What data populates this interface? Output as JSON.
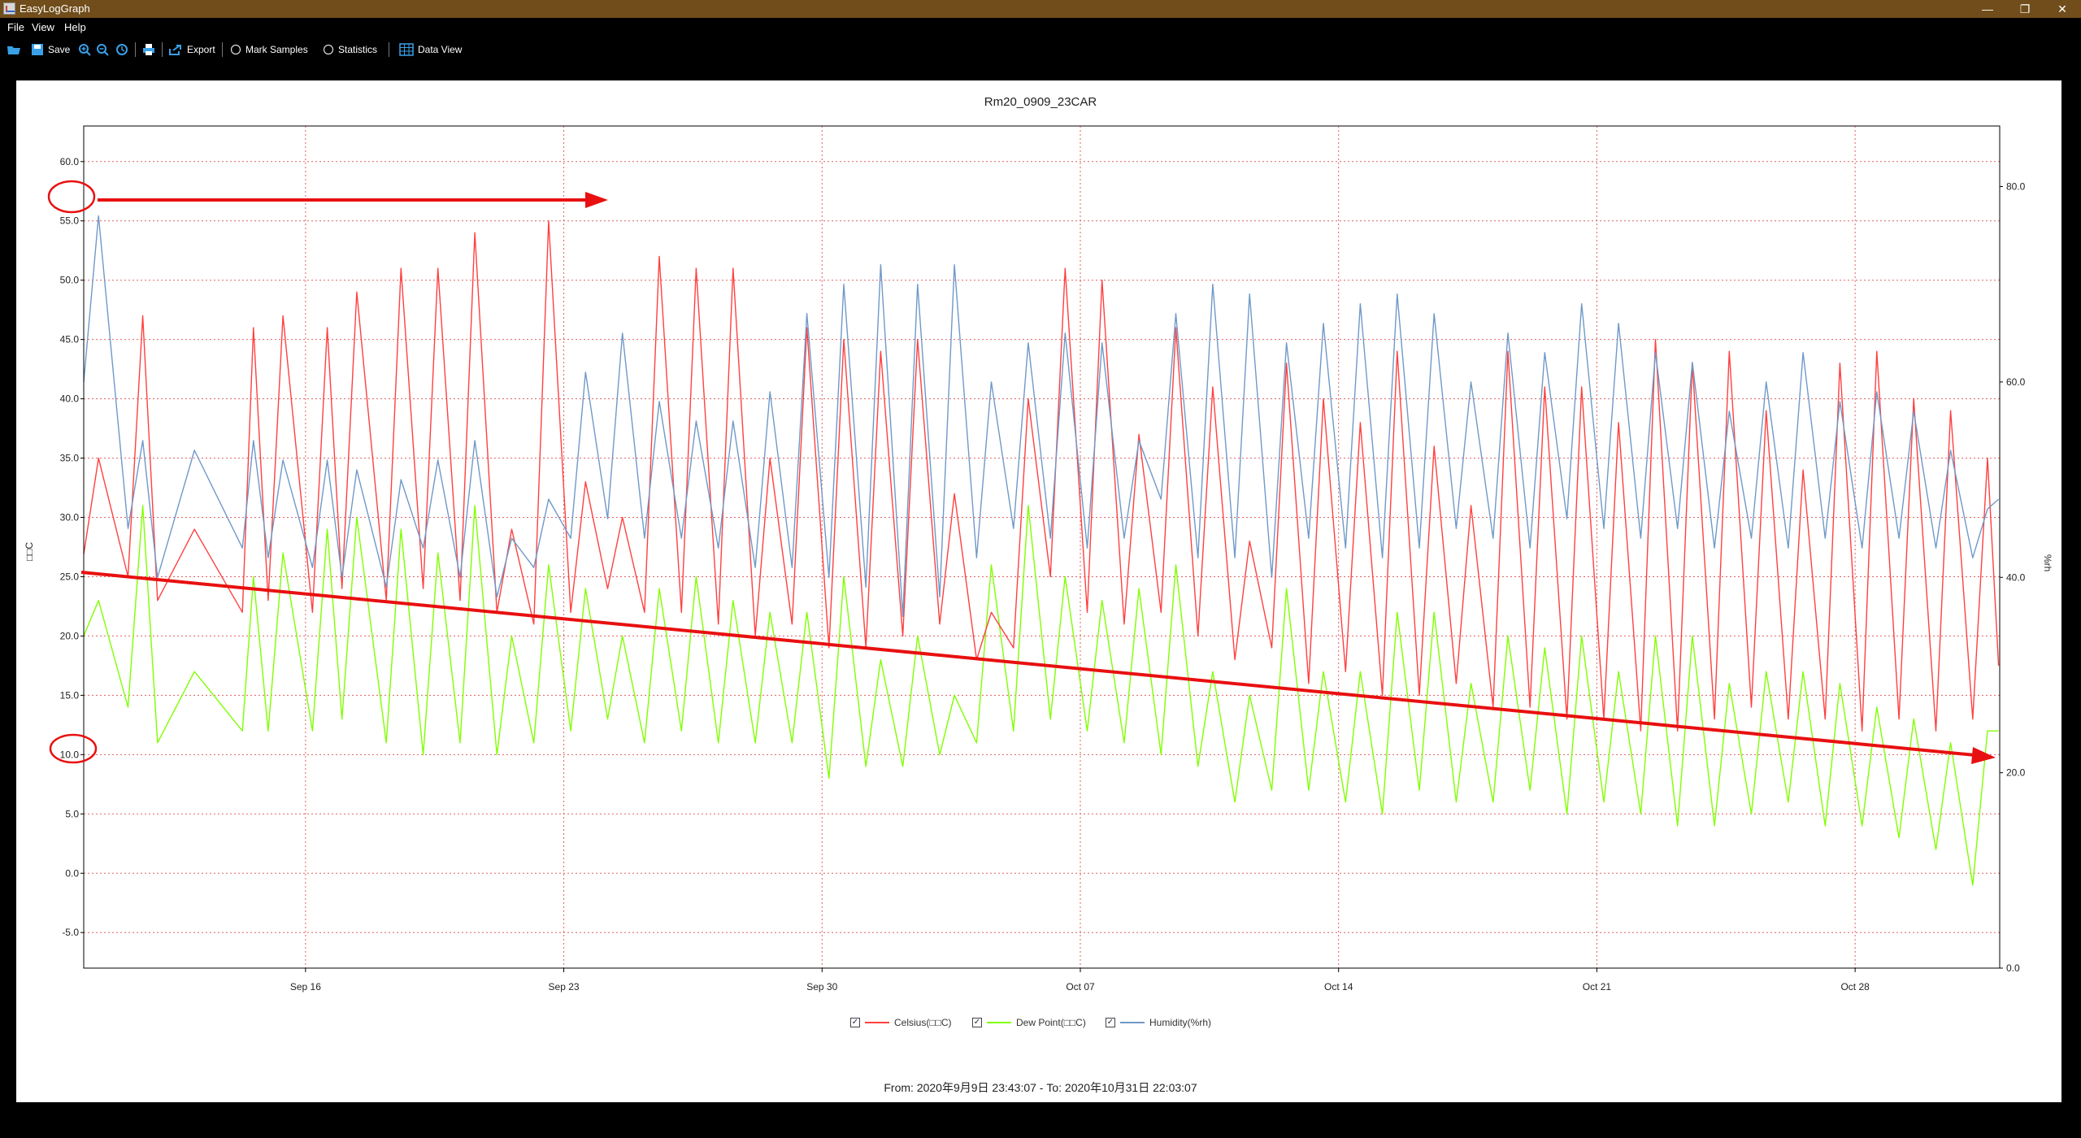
{
  "window": {
    "title": "EasyLogGraph",
    "minimize": "—",
    "restore": "❐",
    "close": "✕"
  },
  "menu": {
    "items": [
      "File",
      "View",
      "Help"
    ]
  },
  "toolbar": {
    "open_icon": "open-icon",
    "save_label": "Save",
    "export_label": "Export",
    "mark_samples_label": "Mark Samples",
    "statistics_label": "Statistics",
    "data_view_label": "Data View"
  },
  "chart_data": {
    "type": "line",
    "title": "Rm20_0909_23CAR",
    "ylabel": "□□C",
    "y2label": "%rh",
    "ylim": [
      -8,
      63
    ],
    "y2lim": [
      0,
      86.2
    ],
    "yticks": [
      "60.0",
      "55.0",
      "50.0",
      "45.0",
      "40.0",
      "35.0",
      "30.0",
      "25.0",
      "20.0",
      "15.0",
      "10.0",
      "5.0",
      "0.0",
      "-5.0"
    ],
    "y2ticks": [
      "80.0",
      "60.0",
      "40.0",
      "20.0",
      "0.0"
    ],
    "x_start": "2020-09-09 23:43:07",
    "x_end": "2020-10-31 22:03:07",
    "xticks": [
      {
        "label": "Sep 16",
        "date": "2020-09-16"
      },
      {
        "label": "Sep 23",
        "date": "2020-09-23"
      },
      {
        "label": "Sep 30",
        "date": "2020-09-30"
      },
      {
        "label": "Oct 07",
        "date": "2020-10-07"
      },
      {
        "label": "Oct 14",
        "date": "2020-10-14"
      },
      {
        "label": "Oct 21",
        "date": "2020-10-21"
      },
      {
        "label": "Oct 28",
        "date": "2020-10-28"
      }
    ],
    "grid": true,
    "legend_position": "bottom",
    "series": [
      {
        "name": "Celsius(□□C)",
        "color": "#ff4040",
        "axis": "left",
        "x_day_of_range": [
          0,
          0.4,
          1.2,
          1.6,
          2,
          3,
          4.3,
          4.6,
          5,
          5.4,
          6.2,
          6.6,
          7,
          7.4,
          8.2,
          8.6,
          9.2,
          9.6,
          10.2,
          10.6,
          11.2,
          11.6,
          12.2,
          12.6,
          13.2,
          13.6,
          14.2,
          14.6,
          15.2,
          15.6,
          16.2,
          16.6,
          17.2,
          17.6,
          18.2,
          18.6,
          19.2,
          19.6,
          20.2,
          20.6,
          21.2,
          21.6,
          22.2,
          22.6,
          23.2,
          23.6,
          24.2,
          24.6,
          25.2,
          25.6,
          26.2,
          26.6,
          27.2,
          27.6,
          28.2,
          28.6,
          29.2,
          29.6,
          30.2,
          30.6,
          31.2,
          31.6,
          32.2,
          32.6,
          33.2,
          33.6,
          34.2,
          34.6,
          35.2,
          35.6,
          36.2,
          36.6,
          37.2,
          37.6,
          38.2,
          38.6,
          39.2,
          39.6,
          40.2,
          40.6,
          41.2,
          41.6,
          42.2,
          42.6,
          43.2,
          43.6,
          44.2,
          44.6,
          45.2,
          45.6,
          46.2,
          46.6,
          47.2,
          47.6,
          48.2,
          48.6,
          49.2,
          49.6,
          50.2,
          50.6,
          51.2,
          51.6,
          51.9
        ],
        "values": [
          26.9,
          35,
          25,
          47,
          23,
          29,
          22,
          46,
          23,
          47,
          22,
          46,
          24,
          49,
          23,
          51,
          24,
          51,
          23,
          54,
          22,
          29,
          21,
          55,
          22,
          33,
          24,
          30,
          22,
          52,
          22,
          51,
          21,
          51,
          20,
          35,
          21,
          46,
          19,
          45,
          19,
          44,
          20,
          45,
          21,
          32,
          18,
          22,
          19,
          40,
          25,
          51,
          22,
          50,
          21,
          37,
          22,
          46,
          20,
          41,
          18,
          28,
          19,
          43,
          16,
          40,
          17,
          38,
          15,
          44,
          15,
          36,
          16,
          31,
          14,
          44,
          14,
          41,
          13,
          41,
          13,
          38,
          12,
          45,
          12,
          43,
          13,
          44,
          14,
          39,
          13,
          34,
          13,
          43,
          12,
          44,
          13,
          40,
          12,
          39,
          13,
          35,
          17.5
        ]
      },
      {
        "name": "Dew Point(□□C)",
        "color": "#80ff00",
        "axis": "left",
        "x_day_of_range": [
          0,
          0.4,
          1.2,
          1.6,
          2,
          3,
          4.3,
          4.6,
          5,
          5.4,
          6.2,
          6.6,
          7,
          7.4,
          8.2,
          8.6,
          9.2,
          9.6,
          10.2,
          10.6,
          11.2,
          11.6,
          12.2,
          12.6,
          13.2,
          13.6,
          14.2,
          14.6,
          15.2,
          15.6,
          16.2,
          16.6,
          17.2,
          17.6,
          18.2,
          18.6,
          19.2,
          19.6,
          20.2,
          20.6,
          21.2,
          21.6,
          22.2,
          22.6,
          23.2,
          23.6,
          24.2,
          24.6,
          25.2,
          25.6,
          26.2,
          26.6,
          27.2,
          27.6,
          28.2,
          28.6,
          29.2,
          29.6,
          30.2,
          30.6,
          31.2,
          31.6,
          32.2,
          32.6,
          33.2,
          33.6,
          34.2,
          34.6,
          35.2,
          35.6,
          36.2,
          36.6,
          37.2,
          37.6,
          38.2,
          38.6,
          39.2,
          39.6,
          40.2,
          40.6,
          41.2,
          41.6,
          42.2,
          42.6,
          43.2,
          43.6,
          44.2,
          44.6,
          45.2,
          45.6,
          46.2,
          46.6,
          47.2,
          47.6,
          48.2,
          48.6,
          49.2,
          49.6,
          50.2,
          50.6,
          51.2,
          51.6,
          51.9
        ],
        "values": [
          20,
          23,
          14,
          31,
          11,
          17,
          12,
          25,
          12,
          27,
          12,
          29,
          13,
          30,
          11,
          29,
          10,
          27,
          11,
          31,
          10,
          20,
          11,
          26,
          12,
          24,
          13,
          20,
          11,
          24,
          12,
          25,
          11,
          23,
          11,
          22,
          11,
          22,
          8,
          25,
          9,
          18,
          9,
          20,
          10,
          15,
          11,
          26,
          12,
          31,
          13,
          25,
          12,
          23,
          11,
          24,
          10,
          26,
          9,
          17,
          6,
          15,
          7,
          24,
          7,
          17,
          6,
          17,
          5,
          22,
          7,
          22,
          6,
          16,
          6,
          20,
          7,
          19,
          5,
          20,
          6,
          17,
          5,
          20,
          4,
          20,
          4,
          16,
          5,
          17,
          6,
          17,
          4,
          16,
          4,
          14,
          3,
          13,
          2,
          11,
          -1,
          12,
          12
        ]
      },
      {
        "name": "Humidity(%rh)",
        "color": "#6f99c8",
        "axis": "right",
        "x_day_of_range": [
          0,
          0.4,
          1.2,
          1.6,
          2,
          3,
          4.3,
          4.6,
          5,
          5.4,
          6.2,
          6.6,
          7,
          7.4,
          8.2,
          8.6,
          9.2,
          9.6,
          10.2,
          10.6,
          11.2,
          11.6,
          12.2,
          12.6,
          13.2,
          13.6,
          14.2,
          14.6,
          15.2,
          15.6,
          16.2,
          16.6,
          17.2,
          17.6,
          18.2,
          18.6,
          19.2,
          19.6,
          20.2,
          20.6,
          21.2,
          21.6,
          22.2,
          22.6,
          23.2,
          23.6,
          24.2,
          24.6,
          25.2,
          25.6,
          26.2,
          26.6,
          27.2,
          27.6,
          28.2,
          28.6,
          29.2,
          29.6,
          30.2,
          30.6,
          31.2,
          31.6,
          32.2,
          32.6,
          33.2,
          33.6,
          34.2,
          34.6,
          35.2,
          35.6,
          36.2,
          36.6,
          37.2,
          37.6,
          38.2,
          38.6,
          39.2,
          39.6,
          40.2,
          40.6,
          41.2,
          41.6,
          42.2,
          42.6,
          43.2,
          43.6,
          44.2,
          44.6,
          45.2,
          45.6,
          46.2,
          46.6,
          47.2,
          47.6,
          48.2,
          48.6,
          49.2,
          49.6,
          50.2,
          50.6,
          51.2,
          51.6,
          51.9
        ],
        "values": [
          60,
          77,
          45,
          54,
          40,
          53,
          43,
          54,
          42,
          52,
          41,
          52,
          40,
          51,
          39,
          50,
          43,
          52,
          40,
          54,
          38,
          44,
          41,
          48,
          44,
          61,
          46,
          65,
          44,
          58,
          44,
          56,
          43,
          56,
          41,
          59,
          41,
          67,
          40,
          70,
          39,
          72,
          36,
          70,
          38,
          72,
          42,
          60,
          45,
          64,
          44,
          65,
          43,
          64,
          44,
          54,
          48,
          67,
          42,
          70,
          42,
          69,
          40,
          64,
          44,
          66,
          43,
          68,
          42,
          69,
          43,
          67,
          45,
          60,
          44,
          65,
          43,
          63,
          46,
          68,
          45,
          66,
          44,
          63,
          45,
          62,
          43,
          57,
          44,
          60,
          43,
          63,
          44,
          58,
          43,
          59,
          44,
          57,
          43,
          53,
          42,
          47,
          48
        ]
      }
    ]
  },
  "annotations": {
    "circle_1_value": "55.0",
    "circle_2_value": "10.0"
  },
  "footer": {
    "range_text": "From: 2020年9月9日 23:43:07  -  To: 2020年10月31日 22:03:07"
  }
}
